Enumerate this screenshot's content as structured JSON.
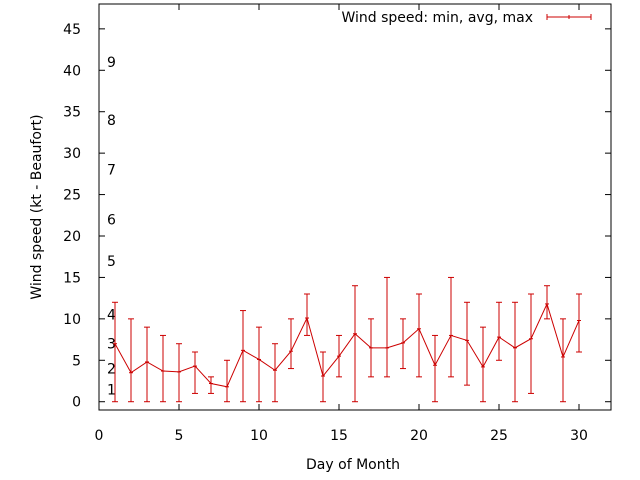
{
  "chart_data": {
    "type": "line",
    "xlabel": "Day of Month",
    "ylabel": "Wind speed (kt - Beaufort)",
    "xlim": [
      0,
      32
    ],
    "ylim": [
      -1,
      48
    ],
    "x_ticks": [
      0,
      5,
      10,
      15,
      20,
      25,
      30
    ],
    "y_ticks": [
      0,
      5,
      10,
      15,
      20,
      25,
      30,
      35,
      40,
      45
    ],
    "grid": false,
    "legend_position": "top-right",
    "beaufort_labels": [
      {
        "label": "1",
        "y": 1.5
      },
      {
        "label": "2",
        "y": 4.0
      },
      {
        "label": "3",
        "y": 7.0
      },
      {
        "label": "4",
        "y": 10.5
      },
      {
        "label": "5",
        "y": 17.0
      },
      {
        "label": "6",
        "y": 22.0
      },
      {
        "label": "7",
        "y": 28.0
      },
      {
        "label": "8",
        "y": 34.0
      },
      {
        "label": "9",
        "y": 41.0
      }
    ],
    "series": [
      {
        "name": "Wind speed: min, avg, max",
        "color": "#cc0000",
        "x": [
          1,
          2,
          3,
          4,
          5,
          6,
          7,
          8,
          9,
          10,
          11,
          12,
          13,
          14,
          15,
          16,
          17,
          18,
          19,
          20,
          21,
          22,
          23,
          24,
          25,
          26,
          27,
          28,
          29,
          30
        ],
        "avg": [
          7.0,
          3.5,
          4.8,
          3.7,
          3.6,
          4.3,
          2.2,
          1.8,
          6.2,
          5.1,
          3.8,
          6.1,
          10.1,
          3.1,
          5.5,
          8.2,
          6.5,
          6.5,
          7.1,
          8.8,
          4.4,
          8.0,
          7.4,
          4.2,
          7.8,
          6.5,
          7.6,
          11.8,
          5.4,
          9.8
        ],
        "min": [
          0,
          0,
          0,
          0,
          0,
          1,
          1,
          0,
          0,
          0,
          0,
          4,
          8,
          0,
          3,
          0,
          3,
          3,
          4,
          3,
          0,
          3,
          2,
          0,
          5,
          0,
          1,
          10,
          0,
          6
        ],
        "max": [
          12,
          10,
          9,
          8,
          7,
          6,
          3,
          5,
          11,
          9,
          7,
          10,
          13,
          6,
          8,
          14,
          10,
          15,
          10,
          13,
          8,
          15,
          12,
          9,
          12,
          12,
          13,
          14,
          10,
          13
        ]
      }
    ]
  }
}
